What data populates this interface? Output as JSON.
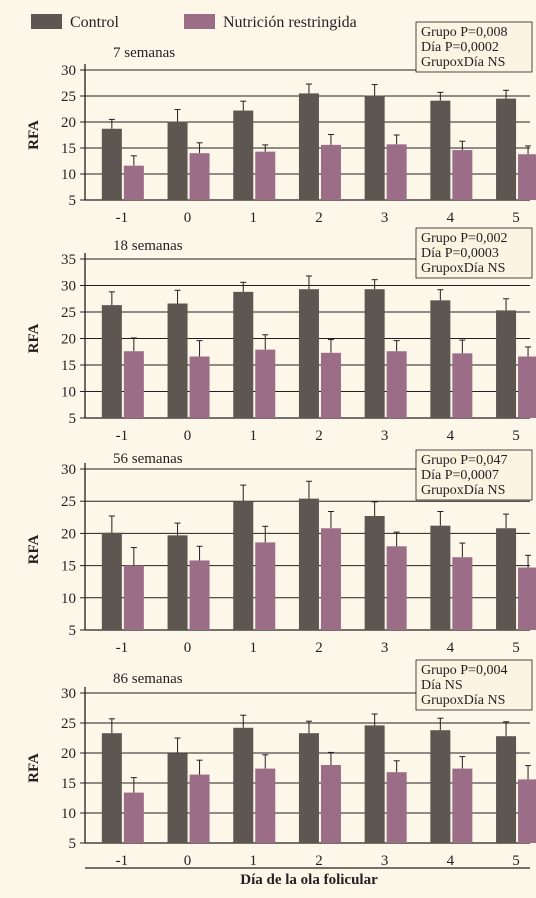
{
  "colors": {
    "control": "#5e5650",
    "restricted": "#9b6d87",
    "background": "#fcf7e8",
    "stat_box": "#fbf4e2"
  },
  "legend": [
    {
      "name": "Control",
      "color": "#5e5650"
    },
    {
      "name": "Nutrición restringida",
      "color": "#9b6d87"
    }
  ],
  "xlabel": "Día de la ola folicular",
  "chart_data": [
    {
      "type": "bar",
      "title": "7 semanas",
      "ylabel": "RFA",
      "categories": [
        "-1",
        "0",
        "1",
        "2",
        "3",
        "4",
        "5"
      ],
      "yticks": [
        5,
        10,
        15,
        20,
        25,
        30
      ],
      "ylim": [
        5,
        30
      ],
      "stats": [
        "Grupo P=0,008",
        "Día P=0,0002",
        "GrupoxDía NS"
      ],
      "series": [
        {
          "name": "Control",
          "values": [
            18.7,
            20.1,
            22.2,
            25.5,
            25.1,
            24.1,
            24.5
          ],
          "errors": [
            1.8,
            2.3,
            1.8,
            1.8,
            2.1,
            1.6,
            1.6
          ]
        },
        {
          "name": "Nutrición restringida",
          "values": [
            11.6,
            14.0,
            14.3,
            15.6,
            15.7,
            14.6,
            13.8
          ],
          "errors": [
            1.9,
            2.0,
            1.3,
            2.0,
            1.8,
            1.7,
            1.6
          ]
        }
      ]
    },
    {
      "type": "bar",
      "title": "18 semanas",
      "ylabel": "RFA",
      "categories": [
        "-1",
        "0",
        "1",
        "2",
        "3",
        "4",
        "5"
      ],
      "yticks": [
        5,
        10,
        15,
        20,
        25,
        30,
        35
      ],
      "ylim": [
        5,
        35
      ],
      "stats": [
        "Grupo P=0,002",
        "Día P=0,0003",
        "GrupoxDía NS"
      ],
      "series": [
        {
          "name": "Control",
          "values": [
            26.3,
            26.6,
            28.8,
            29.3,
            29.3,
            27.2,
            25.3
          ],
          "errors": [
            2.5,
            2.5,
            1.8,
            2.5,
            1.8,
            2.0,
            2.2
          ]
        },
        {
          "name": "Nutrición restringida",
          "values": [
            17.6,
            16.6,
            17.9,
            17.3,
            17.6,
            17.2,
            16.6
          ],
          "errors": [
            2.5,
            3.0,
            2.8,
            2.5,
            2.0,
            2.5,
            1.8
          ]
        }
      ]
    },
    {
      "type": "bar",
      "title": "56 semanas",
      "ylabel": "RFA",
      "categories": [
        "-1",
        "0",
        "1",
        "2",
        "3",
        "4",
        "5"
      ],
      "yticks": [
        5,
        10,
        15,
        20,
        25,
        30
      ],
      "ylim": [
        5,
        30
      ],
      "stats": [
        "Grupo P=0,047",
        "Día P=0,0007",
        "GrupoxDía NS"
      ],
      "series": [
        {
          "name": "Control",
          "values": [
            20.1,
            19.7,
            25.0,
            25.4,
            22.7,
            21.2,
            20.8
          ],
          "errors": [
            2.6,
            1.9,
            2.5,
            2.7,
            2.2,
            2.2,
            2.2
          ]
        },
        {
          "name": "Nutrición restringida",
          "values": [
            15.0,
            15.8,
            18.6,
            20.8,
            18.0,
            16.3,
            14.7
          ],
          "errors": [
            2.8,
            2.2,
            2.5,
            2.6,
            2.2,
            2.2,
            1.9
          ]
        }
      ]
    },
    {
      "type": "bar",
      "title": "86 semanas",
      "ylabel": "RFA",
      "categories": [
        "-1",
        "0",
        "1",
        "2",
        "3",
        "4",
        "5"
      ],
      "yticks": [
        5,
        10,
        15,
        20,
        25,
        30
      ],
      "ylim": [
        5,
        30
      ],
      "stats": [
        "Grupo P=0,004",
        "Día NS",
        "GrupoxDía NS"
      ],
      "series": [
        {
          "name": "Control",
          "values": [
            23.3,
            19.9,
            24.2,
            23.3,
            24.6,
            23.8,
            22.8
          ],
          "errors": [
            2.4,
            2.6,
            2.1,
            2.0,
            1.9,
            2.0,
            2.4
          ]
        },
        {
          "name": "Nutrición restringida",
          "values": [
            13.4,
            16.4,
            17.4,
            18.0,
            16.8,
            17.4,
            15.6
          ],
          "errors": [
            2.5,
            2.4,
            2.3,
            2.1,
            1.9,
            2.0,
            2.3
          ]
        }
      ]
    }
  ]
}
